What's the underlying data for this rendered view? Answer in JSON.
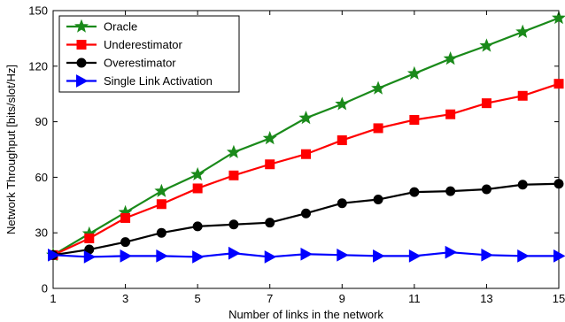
{
  "chart_data": {
    "type": "line",
    "title": "",
    "xlabel": "Number of links in the network",
    "ylabel": "Network Throughput [bits/slot/Hz]",
    "xlim": [
      1,
      15
    ],
    "ylim": [
      0,
      150
    ],
    "xticks": [
      1,
      3,
      5,
      7,
      9,
      11,
      13,
      15
    ],
    "yticks": [
      0,
      30,
      60,
      90,
      120,
      150
    ],
    "grid": false,
    "legend_position": "top-left",
    "x": [
      1,
      2,
      3,
      4,
      5,
      6,
      7,
      8,
      9,
      10,
      11,
      12,
      13,
      14,
      15
    ],
    "series": [
      {
        "name": "Oracle",
        "color": "#1a8a1a",
        "marker": "star",
        "values": [
          18,
          29.5,
          41,
          52.5,
          61.5,
          73.5,
          81,
          92,
          99.5,
          108,
          116,
          124,
          131,
          138.5,
          146
        ]
      },
      {
        "name": "Underestimator",
        "color": "#ff0000",
        "marker": "square",
        "values": [
          18,
          27,
          38,
          45.5,
          54,
          61,
          67,
          72.5,
          80,
          86.5,
          91,
          94,
          100,
          104,
          110.5
        ]
      },
      {
        "name": "Overestimator",
        "color": "#000000",
        "marker": "circle",
        "values": [
          18,
          21,
          25,
          30,
          33.5,
          34.5,
          35.5,
          40.5,
          46,
          48,
          52,
          52.5,
          53.5,
          56,
          56.5
        ]
      },
      {
        "name": "Single Link Activation",
        "color": "#0000ff",
        "marker": "triangle-right",
        "values": [
          18,
          17,
          17.5,
          17.5,
          17,
          19,
          17,
          18.5,
          18,
          17.5,
          17.5,
          19.5,
          18,
          17.5,
          17.5
        ]
      }
    ]
  }
}
